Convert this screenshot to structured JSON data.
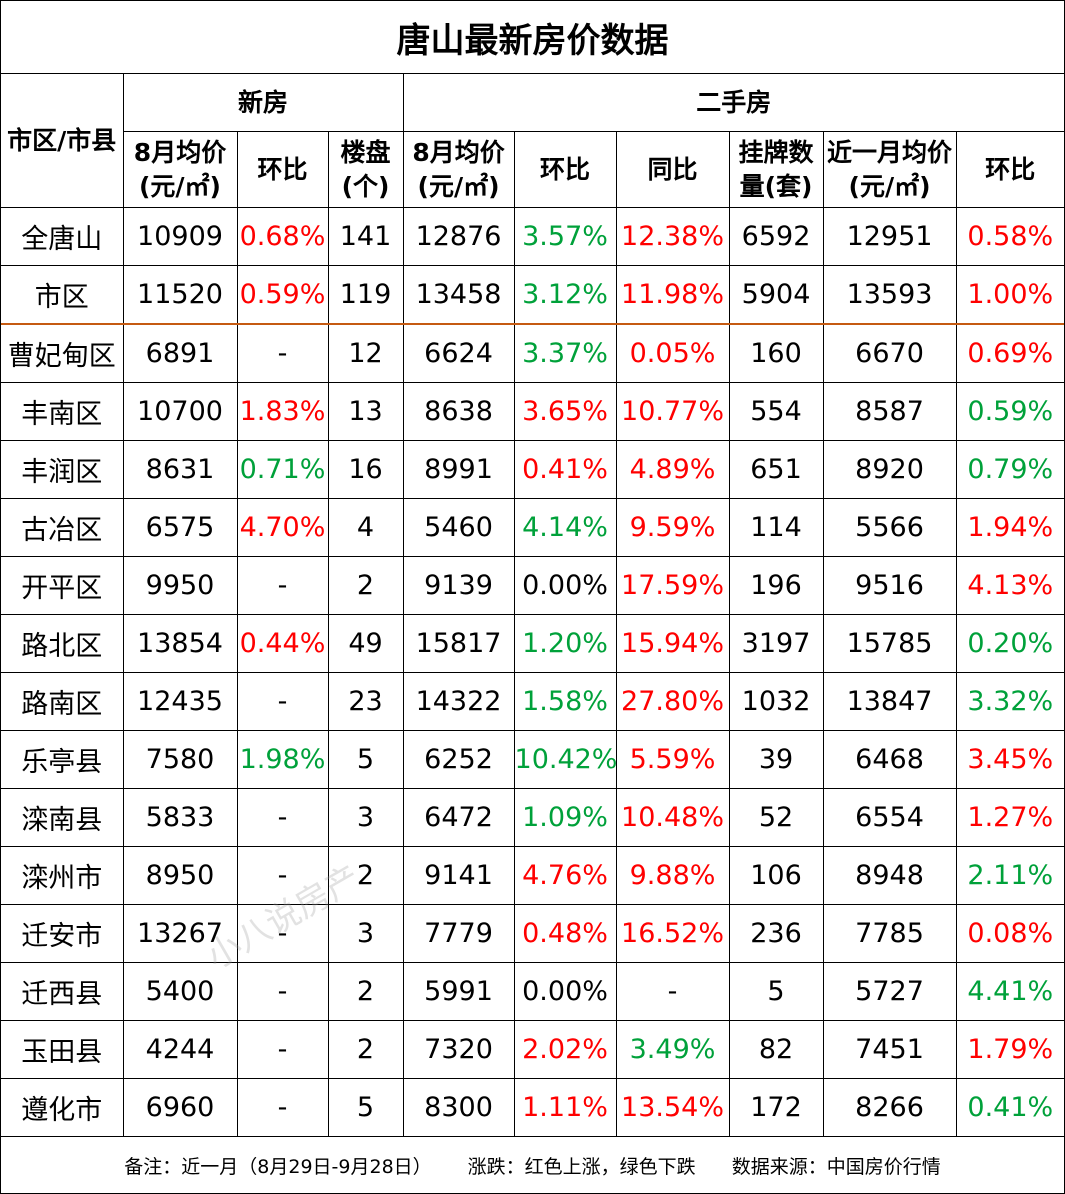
{
  "title": "唐山最新房价数据",
  "header": {
    "region": "市区/市县",
    "new_group": "新房",
    "second_group": "二手房",
    "cols": [
      "8月均价(元/㎡)",
      "环比",
      "楼盘(个)",
      "8月均价(元/㎡)",
      "环比",
      "同比",
      "挂牌数量(套)",
      "近一月均价(元/㎡)",
      "环比"
    ]
  },
  "colors": {
    "up": "#ff0000",
    "down": "#00a13a",
    "separator": "#c55a11"
  },
  "rows": [
    {
      "name": "全唐山",
      "c": [
        "10909",
        "0.68%",
        "141",
        "12876",
        "3.57%",
        "12.38%",
        "6592",
        "12951",
        "0.58%"
      ],
      "k": [
        "black",
        "red",
        "black",
        "black",
        "green",
        "red",
        "black",
        "black",
        "red"
      ]
    },
    {
      "name": "市区",
      "c": [
        "11520",
        "0.59%",
        "119",
        "13458",
        "3.12%",
        "11.98%",
        "5904",
        "13593",
        "1.00%"
      ],
      "k": [
        "black",
        "red",
        "black",
        "black",
        "green",
        "red",
        "black",
        "black",
        "red"
      ]
    },
    {
      "name": "曹妃甸区",
      "c": [
        "6891",
        "-",
        "12",
        "6624",
        "3.37%",
        "0.05%",
        "160",
        "6670",
        "0.69%"
      ],
      "k": [
        "black",
        "black",
        "black",
        "black",
        "green",
        "red",
        "black",
        "black",
        "red"
      ]
    },
    {
      "name": "丰南区",
      "c": [
        "10700",
        "1.83%",
        "13",
        "8638",
        "3.65%",
        "10.77%",
        "554",
        "8587",
        "0.59%"
      ],
      "k": [
        "black",
        "red",
        "black",
        "black",
        "red",
        "red",
        "black",
        "black",
        "green"
      ]
    },
    {
      "name": "丰润区",
      "c": [
        "8631",
        "0.71%",
        "16",
        "8991",
        "0.41%",
        "4.89%",
        "651",
        "8920",
        "0.79%"
      ],
      "k": [
        "black",
        "green",
        "black",
        "black",
        "red",
        "red",
        "black",
        "black",
        "green"
      ]
    },
    {
      "name": "古冶区",
      "c": [
        "6575",
        "4.70%",
        "4",
        "5460",
        "4.14%",
        "9.59%",
        "114",
        "5566",
        "1.94%"
      ],
      "k": [
        "black",
        "red",
        "black",
        "black",
        "green",
        "red",
        "black",
        "black",
        "red"
      ]
    },
    {
      "name": "开平区",
      "c": [
        "9950",
        "-",
        "2",
        "9139",
        "0.00%",
        "17.59%",
        "196",
        "9516",
        "4.13%"
      ],
      "k": [
        "black",
        "black",
        "black",
        "black",
        "black",
        "red",
        "black",
        "black",
        "red"
      ]
    },
    {
      "name": "路北区",
      "c": [
        "13854",
        "0.44%",
        "49",
        "15817",
        "1.20%",
        "15.94%",
        "3197",
        "15785",
        "0.20%"
      ],
      "k": [
        "black",
        "red",
        "black",
        "black",
        "green",
        "red",
        "black",
        "black",
        "green"
      ]
    },
    {
      "name": "路南区",
      "c": [
        "12435",
        "-",
        "23",
        "14322",
        "1.58%",
        "27.80%",
        "1032",
        "13847",
        "3.32%"
      ],
      "k": [
        "black",
        "black",
        "black",
        "black",
        "green",
        "red",
        "black",
        "black",
        "green"
      ]
    },
    {
      "name": "乐亭县",
      "c": [
        "7580",
        "1.98%",
        "5",
        "6252",
        "10.42%",
        "5.59%",
        "39",
        "6468",
        "3.45%"
      ],
      "k": [
        "black",
        "green",
        "black",
        "black",
        "green",
        "red",
        "black",
        "black",
        "red"
      ]
    },
    {
      "name": "滦南县",
      "c": [
        "5833",
        "-",
        "3",
        "6472",
        "1.09%",
        "10.48%",
        "52",
        "6554",
        "1.27%"
      ],
      "k": [
        "black",
        "black",
        "black",
        "black",
        "green",
        "red",
        "black",
        "black",
        "red"
      ]
    },
    {
      "name": "滦州市",
      "c": [
        "8950",
        "-",
        "2",
        "9141",
        "4.76%",
        "9.88%",
        "106",
        "8948",
        "2.11%"
      ],
      "k": [
        "black",
        "black",
        "black",
        "black",
        "red",
        "red",
        "black",
        "black",
        "green"
      ]
    },
    {
      "name": "迁安市",
      "c": [
        "13267",
        "-",
        "3",
        "7779",
        "0.48%",
        "16.52%",
        "236",
        "7785",
        "0.08%"
      ],
      "k": [
        "black",
        "black",
        "black",
        "black",
        "red",
        "red",
        "black",
        "black",
        "red"
      ]
    },
    {
      "name": "迁西县",
      "c": [
        "5400",
        "-",
        "2",
        "5991",
        "0.00%",
        "-",
        "5",
        "5727",
        "4.41%"
      ],
      "k": [
        "black",
        "black",
        "black",
        "black",
        "black",
        "black",
        "black",
        "black",
        "green"
      ]
    },
    {
      "name": "玉田县",
      "c": [
        "4244",
        "-",
        "2",
        "7320",
        "2.02%",
        "3.49%",
        "82",
        "7451",
        "1.79%"
      ],
      "k": [
        "black",
        "black",
        "black",
        "black",
        "red",
        "green",
        "black",
        "black",
        "red"
      ]
    },
    {
      "name": "遵化市",
      "c": [
        "6960",
        "-",
        "5",
        "8300",
        "1.11%",
        "13.54%",
        "172",
        "8266",
        "0.41%"
      ],
      "k": [
        "black",
        "black",
        "black",
        "black",
        "red",
        "red",
        "black",
        "black",
        "green"
      ]
    }
  ],
  "footer": {
    "note": "备注：近一月（8月29日-9月28日）",
    "legend": "涨跌：红色上涨，绿色下跌",
    "source": "数据来源：中国房价行情"
  },
  "watermark": "小八说房产"
}
